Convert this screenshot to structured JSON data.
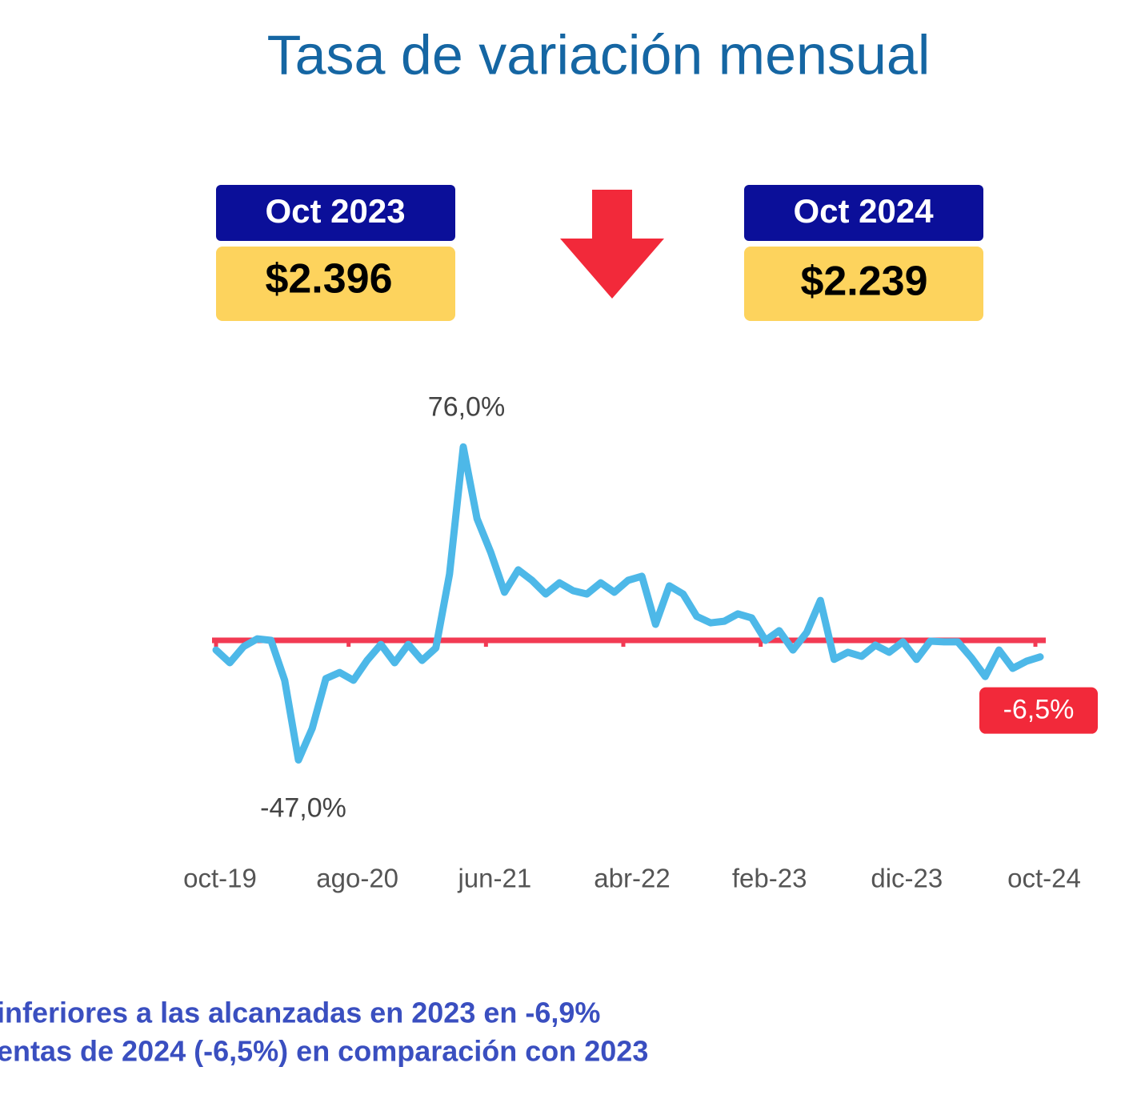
{
  "title": "Tasa de variación mensual",
  "cards": [
    {
      "label": "Oct 2023",
      "value": "$2.396"
    },
    {
      "label": "Oct 2024",
      "value": "$2.239"
    }
  ],
  "chart_data": {
    "type": "line",
    "categories": [
      "oct-19",
      null,
      null,
      null,
      null,
      null,
      null,
      null,
      null,
      null,
      "ago-20",
      null,
      null,
      null,
      null,
      null,
      null,
      null,
      null,
      null,
      "jun-21",
      null,
      null,
      null,
      null,
      null,
      null,
      null,
      null,
      null,
      "abr-22",
      null,
      null,
      null,
      null,
      null,
      null,
      null,
      null,
      null,
      "feb-23",
      null,
      null,
      null,
      null,
      null,
      null,
      null,
      null,
      null,
      "dic-23",
      null,
      null,
      null,
      null,
      null,
      null,
      null,
      null,
      null,
      "oct-24"
    ],
    "series": [
      {
        "color": "#4db8e8",
        "values": [
          -3.8,
          -8.8,
          -2.5,
          0.6,
          0,
          -15.7,
          -47,
          -34.6,
          -15,
          -12.6,
          -15.7,
          -7.9,
          -1.6,
          -8.8,
          -1.6,
          -7.9,
          -3,
          26,
          76,
          47.8,
          34.6,
          18.9,
          27.7,
          23.6,
          18.2,
          22.6,
          19.5,
          18.2,
          22.6,
          18.9,
          23.6,
          25.2,
          6.3,
          21.4,
          18.2,
          9.4,
          6.9,
          7.5,
          10.4,
          8.8,
          0,
          3.8,
          -3.8,
          3.1,
          15.7,
          -7.5,
          -4.7,
          -6.3,
          -1.9,
          -4.7,
          -0.6,
          -7.5,
          -0.3,
          -0.6,
          -0.6,
          -6.9,
          -14.2,
          -3.8,
          -11,
          -8.2,
          -6.5
        ],
        "value_labels": [
          null,
          null,
          null,
          null,
          null,
          null,
          "-47,0%",
          null,
          null,
          null,
          null,
          null,
          null,
          null,
          null,
          null,
          null,
          null,
          "76,0%",
          null,
          null,
          null,
          null,
          null,
          null,
          null,
          null,
          null,
          null,
          null,
          null,
          null,
          null,
          null,
          null,
          null,
          null,
          null,
          null,
          null,
          null,
          null,
          null,
          null,
          null,
          null,
          null,
          null,
          null,
          null,
          null,
          null,
          null,
          null,
          null,
          null,
          null,
          null,
          null,
          null,
          "-6,5%"
        ]
      }
    ],
    "ylim": [
      -60,
      90
    ]
  },
  "footer": [
    "inferiores a las alcanzadas en 2023 en -6,9%",
    "entas de 2024 (-6,5%) en comparación con 2023"
  ]
}
